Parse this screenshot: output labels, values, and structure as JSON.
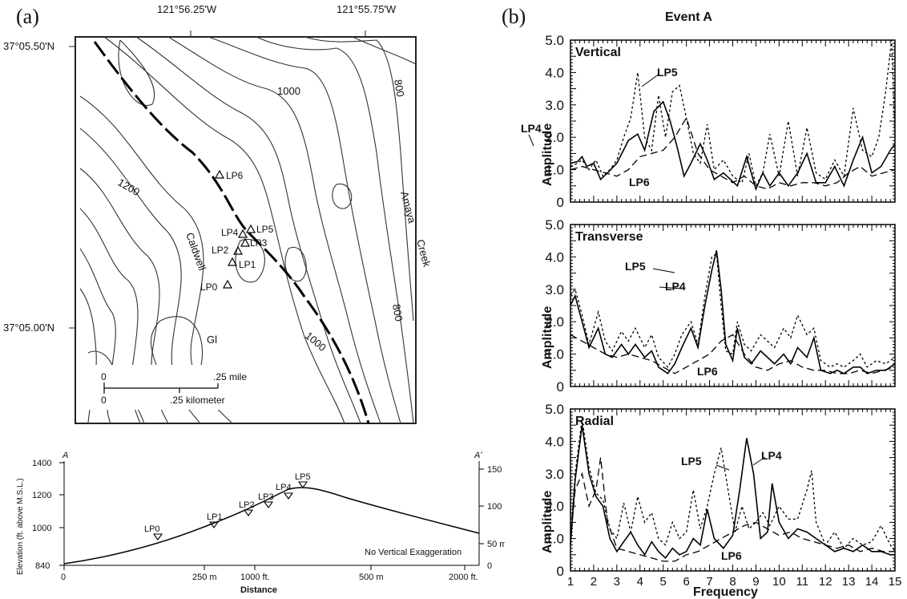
{
  "panel_a_label": "(a)",
  "panel_b_label": "(b)",
  "map": {
    "lon_left": "121°56.25'W",
    "lon_right": "121°55.75'W",
    "lat_top": "37°05.50'N",
    "lat_bottom": "37°05.00'N",
    "contours": [
      "1000",
      "800",
      "1200",
      "800",
      "1000"
    ],
    "names": [
      "Amaya",
      "Creek",
      "Caldwell",
      "Gl"
    ],
    "sites": [
      "LP6",
      "LP5",
      "LP4",
      "LP3",
      "LP2",
      "LP1",
      "LP0"
    ],
    "scale_mile_0": "0",
    "scale_mile": ".25 mile",
    "scale_km_0": "0",
    "scale_km_mid": ".25",
    "scale_km_unit": "kilometer"
  },
  "profile": {
    "end_left": "A",
    "end_right": "A'",
    "ylabel": "Elevation (ft. above M.S.L.)",
    "xlabel": "Distance",
    "note": "No Vertical Exaggeration",
    "left_ticks": [
      "1400",
      "1200",
      "1000",
      "840"
    ],
    "right_ticks": [
      "150 m",
      "100 m",
      "50 m",
      "0"
    ],
    "x_ticks": [
      "0",
      "250 m",
      "1000 ft.",
      "500 m",
      "2000 ft."
    ],
    "stations": [
      "LP0",
      "LP1",
      "LP2",
      "LP3",
      "LP4",
      "LP5"
    ]
  },
  "chart_data": [
    {
      "type": "line",
      "title": "Event A",
      "panel": "Vertical",
      "xlabel": "Frequency",
      "ylabel": "Amplitude",
      "xlim": [
        1,
        15
      ],
      "ylim": [
        0,
        5
      ],
      "x_ticks": [
        1,
        2,
        3,
        4,
        5,
        6,
        7,
        8,
        9,
        10,
        11,
        12,
        13,
        14,
        15
      ],
      "y_ticks": [
        "0",
        "1.0",
        "2.0",
        "3.0",
        "4.0",
        "5.0"
      ],
      "series": [
        {
          "name": "LP4",
          "style": "solid",
          "x": [
            1,
            1.3,
            1.5,
            1.7,
            2,
            2.3,
            2.6,
            3,
            3.5,
            3.9,
            4.2,
            4.6,
            5,
            5.3,
            5.6,
            5.9,
            6.2,
            6.6,
            6.9,
            7.2,
            7.6,
            7.9,
            8.2,
            8.6,
            9,
            9.3,
            9.6,
            10,
            10.4,
            10.8,
            11.2,
            11.6,
            12,
            12.4,
            12.8,
            13.2,
            13.6,
            14,
            14.4,
            14.8,
            15
          ],
          "y": [
            1.2,
            1.25,
            1.4,
            1.1,
            1.2,
            0.7,
            0.9,
            1.2,
            1.9,
            2.1,
            1.6,
            2.8,
            3.1,
            2.5,
            1.7,
            0.8,
            1.2,
            1.8,
            1.3,
            0.7,
            0.9,
            0.7,
            0.5,
            1.4,
            0.4,
            0.9,
            0.5,
            0.9,
            0.5,
            0.9,
            1.5,
            0.6,
            0.6,
            1.1,
            0.5,
            1.3,
            2.0,
            0.9,
            1.1,
            1.6,
            1.8
          ]
        },
        {
          "name": "LP5",
          "style": "short-dash",
          "x": [
            1,
            1.3,
            1.5,
            1.8,
            2.1,
            2.4,
            2.7,
            3,
            3.3,
            3.6,
            3.9,
            4.2,
            4.5,
            4.8,
            5.1,
            5.4,
            5.7,
            6,
            6.3,
            6.6,
            6.9,
            7.2,
            7.6,
            8,
            8.4,
            8.7,
            9,
            9.3,
            9.6,
            10,
            10.4,
            10.8,
            11.2,
            11.6,
            12,
            12.4,
            12.8,
            13.2,
            13.6,
            14,
            14.3,
            14.6,
            14.85,
            15
          ],
          "y": [
            1.1,
            1.2,
            1.3,
            1.0,
            1.3,
            0.8,
            1.0,
            1.3,
            2.0,
            2.6,
            4.0,
            2.0,
            1.6,
            3.3,
            2.0,
            3.4,
            3.6,
            2.6,
            1.5,
            1.2,
            2.4,
            1.0,
            1.3,
            0.8,
            0.6,
            1.5,
            0.5,
            0.9,
            2.1,
            0.8,
            2.5,
            0.8,
            2.3,
            0.9,
            0.7,
            1.3,
            0.8,
            2.9,
            1.6,
            1.4,
            2.0,
            3.4,
            5.0,
            2.0
          ]
        },
        {
          "name": "LP6",
          "style": "long-dash",
          "x": [
            1,
            1.5,
            2,
            2.5,
            3,
            3.5,
            4,
            4.5,
            5,
            5.5,
            6,
            6.5,
            7,
            7.5,
            8,
            8.5,
            9,
            9.5,
            10,
            10.5,
            11,
            11.5,
            12,
            12.5,
            13,
            13.5,
            14,
            14.5,
            15
          ],
          "y": [
            1.0,
            1.1,
            1.0,
            0.9,
            0.8,
            1.0,
            1.4,
            1.5,
            1.6,
            2.0,
            2.6,
            1.5,
            1.0,
            0.8,
            0.6,
            0.8,
            0.5,
            0.4,
            0.6,
            0.5,
            0.6,
            0.6,
            0.5,
            0.6,
            0.9,
            1.1,
            0.8,
            0.9,
            1.0
          ]
        }
      ],
      "labels": [
        "LP5",
        "LP4",
        "LP6"
      ]
    },
    {
      "type": "line",
      "panel": "Transverse",
      "xlabel": "Frequency",
      "ylabel": "Amplitude",
      "xlim": [
        1,
        15
      ],
      "ylim": [
        0,
        5
      ],
      "x_ticks": [
        1,
        2,
        3,
        4,
        5,
        6,
        7,
        8,
        9,
        10,
        11,
        12,
        13,
        14,
        15
      ],
      "y_ticks": [
        "0",
        "1.0",
        "2.0",
        "3.0",
        "4.0",
        "5.0"
      ],
      "series": [
        {
          "name": "LP4",
          "style": "solid",
          "x": [
            1,
            1.2,
            1.5,
            1.8,
            2.2,
            2.5,
            2.8,
            3.2,
            3.5,
            3.8,
            4.2,
            4.5,
            4.8,
            5.2,
            5.5,
            5.8,
            6.2,
            6.5,
            6.8,
            7.1,
            7.3,
            7.5,
            7.7,
            8,
            8.2,
            8.5,
            8.8,
            9.2,
            9.5,
            9.8,
            10.2,
            10.5,
            10.8,
            11.2,
            11.5,
            11.8,
            12.2,
            12.5,
            12.8,
            13.2,
            13.5,
            13.8,
            14.2,
            14.6,
            15
          ],
          "y": [
            2.5,
            2.8,
            2.0,
            1.2,
            1.8,
            1.0,
            0.9,
            1.3,
            1.0,
            1.3,
            0.9,
            1.1,
            0.6,
            0.4,
            0.7,
            1.2,
            1.8,
            1.2,
            2.5,
            3.6,
            4.2,
            3.0,
            1.3,
            0.8,
            1.8,
            0.9,
            0.7,
            1.1,
            0.9,
            0.7,
            1.0,
            0.7,
            1.2,
            0.9,
            1.5,
            0.5,
            0.4,
            0.5,
            0.4,
            0.6,
            0.6,
            0.4,
            0.5,
            0.5,
            0.7
          ]
        },
        {
          "name": "LP5",
          "style": "short-dash",
          "x": [
            1,
            1.2,
            1.5,
            1.8,
            2.2,
            2.5,
            2.8,
            3.2,
            3.5,
            3.8,
            4.2,
            4.5,
            4.8,
            5.2,
            5.5,
            5.8,
            6.2,
            6.5,
            6.8,
            7.1,
            7.3,
            7.5,
            7.7,
            8,
            8.2,
            8.5,
            8.8,
            9.2,
            9.5,
            9.8,
            10.2,
            10.5,
            10.8,
            11.2,
            11.5,
            11.8,
            12.2,
            12.5,
            12.8,
            13.2,
            13.5,
            13.8,
            14.2,
            14.6,
            15
          ],
          "y": [
            2.8,
            3.0,
            2.2,
            1.3,
            2.3,
            1.4,
            1.1,
            1.7,
            1.4,
            1.8,
            1.2,
            1.6,
            0.9,
            0.6,
            1.0,
            1.6,
            2.0,
            1.3,
            2.8,
            4.0,
            4.1,
            2.5,
            1.1,
            1.0,
            2.0,
            1.3,
            1.1,
            1.6,
            1.4,
            1.2,
            1.8,
            1.5,
            2.2,
            1.6,
            1.8,
            0.8,
            0.6,
            0.7,
            0.6,
            0.8,
            1.0,
            0.6,
            0.8,
            0.7,
            0.9
          ]
        },
        {
          "name": "LP6",
          "style": "long-dash",
          "x": [
            1,
            1.5,
            2,
            2.5,
            3,
            3.5,
            4,
            4.5,
            5,
            5.5,
            6,
            6.5,
            7,
            7.5,
            8,
            8.5,
            9,
            9.5,
            10,
            10.5,
            11,
            11.5,
            12,
            12.5,
            13,
            13.5,
            14,
            14.5,
            15
          ],
          "y": [
            1.6,
            1.4,
            1.2,
            1.0,
            0.9,
            1.0,
            0.9,
            0.8,
            0.6,
            0.4,
            0.6,
            0.8,
            1.0,
            1.4,
            1.6,
            1.0,
            0.6,
            0.5,
            0.7,
            0.8,
            0.6,
            0.5,
            0.5,
            0.4,
            0.4,
            0.5,
            0.4,
            0.5,
            0.6
          ]
        }
      ],
      "labels": [
        "LP5",
        "LP4",
        "LP6"
      ]
    },
    {
      "type": "line",
      "panel": "Radial",
      "xlabel": "Frequency",
      "ylabel": "Amplitude",
      "xlim": [
        1,
        15
      ],
      "ylim": [
        0,
        5
      ],
      "x_ticks": [
        1,
        2,
        3,
        4,
        5,
        6,
        7,
        8,
        9,
        10,
        11,
        12,
        13,
        14,
        15
      ],
      "y_ticks": [
        "0",
        "1.0",
        "2.0",
        "3.0",
        "4.0",
        "5.0"
      ],
      "series": [
        {
          "name": "LP4",
          "style": "solid",
          "x": [
            1,
            1.2,
            1.5,
            1.8,
            2.1,
            2.4,
            2.7,
            3,
            3.3,
            3.6,
            3.9,
            4.2,
            4.5,
            4.8,
            5.1,
            5.4,
            5.7,
            6,
            6.3,
            6.6,
            6.9,
            7.2,
            7.6,
            8,
            8.3,
            8.6,
            8.9,
            9.2,
            9.5,
            9.7,
            10,
            10.4,
            10.8,
            11.2,
            11.6,
            12,
            12.4,
            12.8,
            13.2,
            13.6,
            14,
            14.4,
            14.8,
            15
          ],
          "y": [
            0.8,
            2.8,
            4.5,
            3.0,
            2.3,
            2.0,
            1.0,
            0.6,
            0.9,
            1.2,
            0.8,
            0.5,
            0.9,
            0.6,
            0.4,
            0.7,
            0.5,
            0.6,
            1.0,
            0.8,
            1.9,
            1.0,
            0.7,
            1.1,
            2.5,
            4.1,
            3.0,
            1.0,
            1.2,
            2.7,
            1.5,
            1.0,
            1.3,
            1.2,
            1.0,
            0.8,
            0.6,
            0.7,
            0.6,
            0.8,
            0.6,
            0.6,
            0.5,
            0.5
          ]
        },
        {
          "name": "LP5",
          "style": "short-dash",
          "x": [
            1,
            1.2,
            1.5,
            1.8,
            2.1,
            2.4,
            2.7,
            3,
            3.3,
            3.6,
            3.9,
            4.2,
            4.5,
            4.8,
            5.1,
            5.4,
            5.7,
            6,
            6.3,
            6.6,
            6.9,
            7.2,
            7.5,
            7.8,
            8.1,
            8.4,
            8.7,
            9,
            9.3,
            9.6,
            10,
            10.4,
            10.8,
            11.2,
            11.4,
            11.6,
            12,
            12.4,
            12.8,
            13.2,
            13.6,
            14,
            14.4,
            14.8,
            15
          ],
          "y": [
            1.0,
            3.0,
            4.7,
            3.2,
            2.4,
            2.2,
            1.3,
            1.0,
            2.1,
            1.2,
            2.3,
            1.5,
            1.8,
            1.0,
            0.8,
            1.5,
            1.0,
            1.2,
            2.5,
            1.3,
            2.0,
            3.0,
            3.8,
            2.5,
            1.2,
            2.0,
            1.3,
            1.5,
            1.8,
            1.4,
            2.0,
            1.6,
            1.6,
            2.5,
            3.1,
            1.5,
            0.8,
            1.2,
            0.7,
            1.0,
            0.8,
            0.9,
            1.4,
            0.8,
            0.6
          ]
        },
        {
          "name": "LP6",
          "style": "long-dash",
          "x": [
            1,
            1.2,
            1.5,
            1.8,
            2.1,
            2.3,
            2.6,
            3,
            3.5,
            4,
            4.5,
            5,
            5.5,
            6,
            6.5,
            7,
            7.5,
            8,
            8.5,
            9,
            9.5,
            10,
            10.5,
            11,
            11.5,
            12,
            12.5,
            13,
            13.5,
            14,
            14.5,
            15
          ],
          "y": [
            0.9,
            2.5,
            3.0,
            2.0,
            2.5,
            3.5,
            1.5,
            0.7,
            0.6,
            0.5,
            0.4,
            0.3,
            0.3,
            0.5,
            0.6,
            0.8,
            1.0,
            1.2,
            1.4,
            1.5,
            1.3,
            1.1,
            1.2,
            1.0,
            0.9,
            0.8,
            0.7,
            0.8,
            0.6,
            0.7,
            0.6,
            0.6
          ]
        }
      ],
      "labels": [
        "LP5",
        "LP4",
        "LP6"
      ]
    }
  ]
}
